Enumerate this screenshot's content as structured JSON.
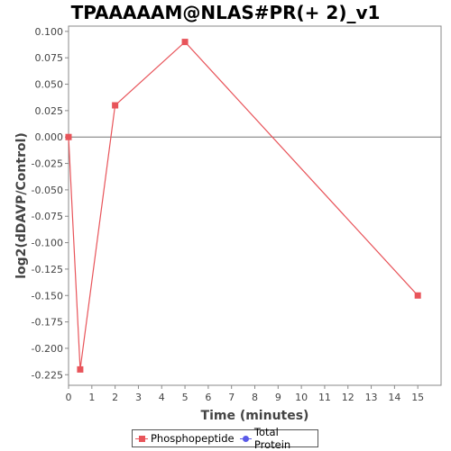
{
  "chart_data": {
    "type": "line",
    "title": "TPAAAAAM@NLAS#PR(+ 2)_v1",
    "xlabel": "Time (minutes)",
    "ylabel": "log2(dDAVP/Control)",
    "xlim": [
      0,
      16
    ],
    "ylim": [
      -0.235,
      0.105
    ],
    "x_ticks": [
      0,
      1,
      2,
      3,
      4,
      5,
      6,
      7,
      8,
      9,
      10,
      11,
      12,
      13,
      14,
      15
    ],
    "y_ticks": [
      0.1,
      0.075,
      0.05,
      0.025,
      0.0,
      -0.025,
      -0.05,
      -0.075,
      -0.1,
      -0.125,
      -0.15,
      -0.175,
      -0.2,
      -0.225
    ],
    "y_tick_labels": [
      "0.100",
      "0.075",
      "0.050",
      "0.025",
      "0.000",
      "-0.025",
      "-0.050",
      "-0.075",
      "-0.100",
      "-0.125",
      "-0.150",
      "-0.175",
      "-0.200",
      "-0.225"
    ],
    "zero_line": true,
    "grid": false,
    "legend_position": "bottom",
    "series": [
      {
        "name": "Phosphopeptide",
        "color": "#e8545a",
        "marker": "square",
        "x": [
          0,
          0.5,
          2,
          5,
          15
        ],
        "y": [
          0.0,
          -0.22,
          0.03,
          0.09,
          -0.15
        ]
      },
      {
        "name": "Total Protein",
        "color": "#5a5ae8",
        "marker": "circle",
        "x": [],
        "y": []
      }
    ]
  }
}
